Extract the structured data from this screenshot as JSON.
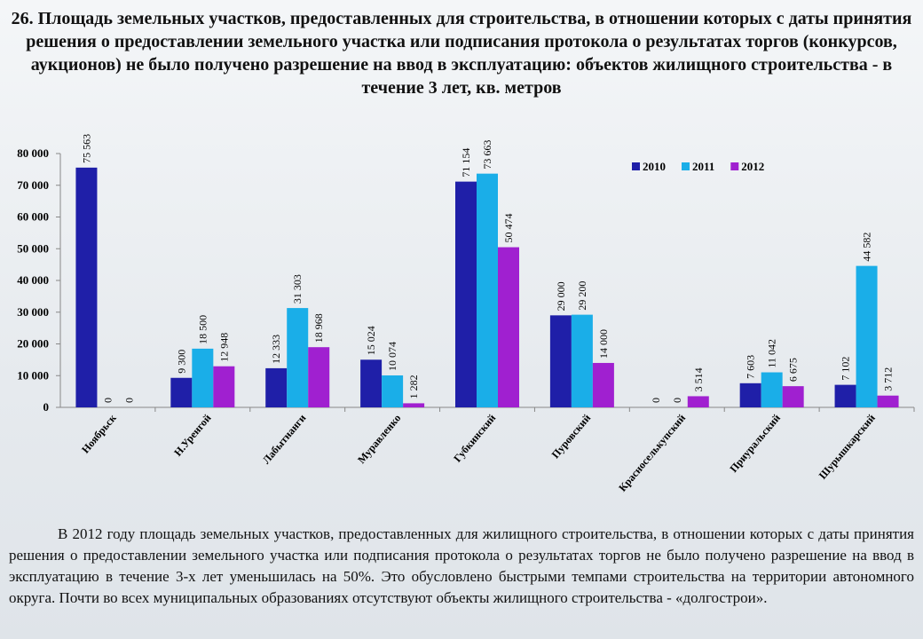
{
  "chart_data": {
    "type": "bar",
    "title": "26. Площадь земельных участков, предоставленных для строительства, в отношении которых с даты принятия решения о предоставлении земельного участка или подписания протокола о результатах торгов (конкурсов, аукционов) не было получено разрешение на ввод в эксплуатацию: объектов жилищного строительства - в течение 3 лет, кв. метров",
    "categories": [
      "Ноябрьск",
      "Н.Уренгой",
      "Лабытнанги",
      "Муравленко",
      "Губкинский",
      "Пуровский",
      "Красноселькупский",
      "Приуральский",
      "Шурышкарский"
    ],
    "series": [
      {
        "name": "2010",
        "color": "#1f1fa8",
        "values": [
          75563,
          9300,
          12333,
          15024,
          71154,
          29000,
          0,
          7603,
          7102
        ],
        "value_labels": [
          "75 563",
          "9 300",
          "12 333",
          "15 024",
          "71 154",
          "29 000",
          "0",
          "7 603",
          "7 102"
        ]
      },
      {
        "name": "2011",
        "color": "#1aaee8",
        "values": [
          0,
          18500,
          31303,
          10074,
          73663,
          29200,
          0,
          11042,
          44582
        ],
        "value_labels": [
          "0",
          "18 500",
          "31 303",
          "10 074",
          "73 663",
          "29 200",
          "0",
          "11 042",
          "44 582"
        ]
      },
      {
        "name": "2012",
        "color": "#a020d0",
        "values": [
          0,
          12948,
          18968,
          1282,
          50474,
          14000,
          3514,
          6675,
          3712
        ],
        "value_labels": [
          "0",
          "12 948",
          "18 968",
          "1 282",
          "50 474",
          "14 000",
          "3 514",
          "6 675",
          "3 712"
        ]
      }
    ],
    "ylim": [
      0,
      80000
    ],
    "yticks": [
      0,
      {
        "value": 10000,
        "label": "10 000"
      },
      {
        "value": 20000,
        "label": "20 000"
      },
      {
        "value": 30000,
        "label": "30 000"
      },
      {
        "value": 40000,
        "label": "40 000"
      },
      {
        "value": 50000,
        "label": "50 000"
      },
      {
        "value": 60000,
        "label": "60 000"
      },
      {
        "value": 70000,
        "label": "70 000"
      },
      {
        "value": 80000,
        "label": "80 000"
      }
    ],
    "grid": false,
    "legend": "top-right"
  },
  "note": {
    "text": "В 2012 году площадь земельных участков, предоставленных для жилищного строительства, в отношении которых с даты принятия решения о предоставлении земельного участка или подписания протокола о результатах торгов не было получено разрешение на ввод в эксплуатацию в течение 3-х лет уменьшилась на 50%. Это обусловлено быстрыми темпами строительства на территории автономного округа. Почти во всех муниципальных образованиях отсутствуют объекты жилищного строительства - «долгострои»."
  }
}
